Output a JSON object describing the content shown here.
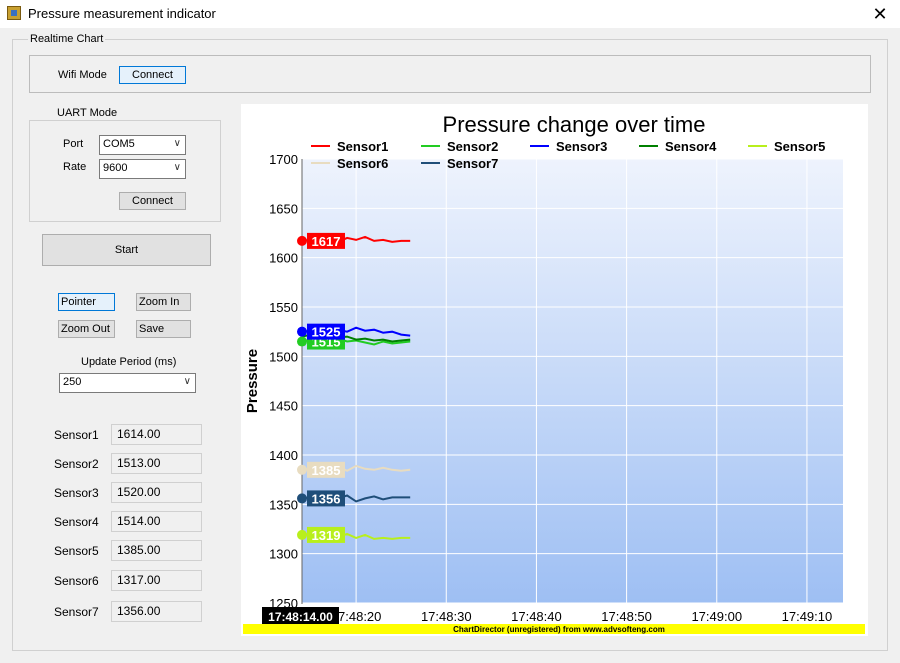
{
  "window": {
    "title": "Pressure measurement indicator",
    "close_glyph": "✕"
  },
  "realtime_group": {
    "label": "Realtime Chart"
  },
  "wifi": {
    "label": "Wifi Mode",
    "connect": "Connect"
  },
  "uart": {
    "label": "UART Mode",
    "port_label": "Port",
    "port_value": "COM5",
    "rate_label": "Rate",
    "rate_value": "9600",
    "connect": "Connect"
  },
  "controls": {
    "start": "Start",
    "pointer": "Pointer",
    "zoom_in": "Zoom In",
    "zoom_out": "Zoom Out",
    "save": "Save",
    "update_label": "Update Period (ms)",
    "update_value": "250"
  },
  "sensors": [
    {
      "label": "Sensor1",
      "value": "1614.00"
    },
    {
      "label": "Sensor2",
      "value": "1513.00"
    },
    {
      "label": "Sensor3",
      "value": "1520.00"
    },
    {
      "label": "Sensor4",
      "value": "1514.00"
    },
    {
      "label": "Sensor5",
      "value": "1385.00"
    },
    {
      "label": "Sensor6",
      "value": "1317.00"
    },
    {
      "label": "Sensor7",
      "value": "1356.00"
    }
  ],
  "chart_data": {
    "type": "line",
    "title": "Pressure change over time",
    "ylabel": "Pressure",
    "ylim": [
      1250,
      1700
    ],
    "yticks": [
      1250,
      1300,
      1350,
      1400,
      1450,
      1500,
      1550,
      1600,
      1650,
      1700
    ],
    "xlim": [
      "17:48:14",
      "17:49:14"
    ],
    "xticks": [
      "17:48:20",
      "17:48:30",
      "17:48:40",
      "17:48:50",
      "17:49:00",
      "17:49:10"
    ],
    "cursor_time": "17:48:14.00",
    "footer": "ChartDirector (unregistered) from www.advsofteng.com",
    "x": [
      "17:48:14",
      "17:48:15",
      "17:48:16",
      "17:48:17",
      "17:48:18",
      "17:48:19",
      "17:48:20",
      "17:48:21",
      "17:48:22",
      "17:48:23",
      "17:48:24",
      "17:48:25",
      "17:48:26"
    ],
    "series": [
      {
        "name": "Sensor1",
        "color": "#ff0000",
        "start_label": "1617",
        "values": [
          1617,
          1618,
          1617,
          1619,
          1616,
          1620,
          1618,
          1621,
          1617,
          1618,
          1616,
          1617,
          1617
        ]
      },
      {
        "name": "Sensor2",
        "color": "#22cc22",
        "start_label": "1515",
        "values": [
          1515,
          1517,
          1519,
          1516,
          1518,
          1515,
          1516,
          1514,
          1512,
          1515,
          1513,
          1514,
          1515
        ]
      },
      {
        "name": "Sensor3",
        "color": "#0000ff",
        "start_label": "1525",
        "values": [
          1525,
          1526,
          1527,
          1528,
          1527,
          1525,
          1529,
          1526,
          1527,
          1524,
          1525,
          1522,
          1521
        ]
      },
      {
        "name": "Sensor4",
        "color": "#008000",
        "start_label": "",
        "values": [
          1520,
          1522,
          1523,
          1521,
          1519,
          1520,
          1517,
          1518,
          1516,
          1517,
          1515,
          1516,
          1517
        ]
      },
      {
        "name": "Sensor5",
        "color": "#b8ef1c",
        "start_label": "1319",
        "values": [
          1319,
          1320,
          1318,
          1321,
          1317,
          1320,
          1316,
          1319,
          1315,
          1316,
          1315,
          1316,
          1316
        ]
      },
      {
        "name": "Sensor6",
        "color": "#e8dcc0",
        "start_label": "1385",
        "values": [
          1385,
          1386,
          1387,
          1385,
          1388,
          1384,
          1389,
          1386,
          1385,
          1387,
          1385,
          1384,
          1385
        ]
      },
      {
        "name": "Sensor7",
        "color": "#1f4e79",
        "start_label": "1356",
        "values": [
          1356,
          1357,
          1355,
          1358,
          1356,
          1359,
          1353,
          1356,
          1358,
          1355,
          1357,
          1357,
          1357
        ]
      }
    ]
  }
}
